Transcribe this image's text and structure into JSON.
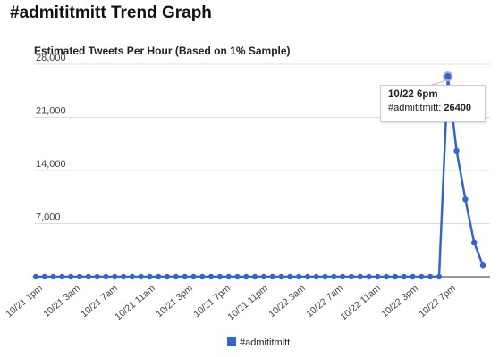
{
  "page": {
    "title": "#admititmitt Trend Graph"
  },
  "tooltip": {
    "title": "10/22 6pm",
    "series_label": "#admititmitt:",
    "value": "26400"
  },
  "chart_data": {
    "type": "line",
    "title": "Estimated Tweets Per Hour (Based on 1% Sample)",
    "xlabel": "",
    "ylabel": "",
    "ylim": [
      0,
      28000
    ],
    "yticks": [
      7000,
      14000,
      21000,
      28000
    ],
    "ytick_labels": [
      "7,000",
      "14,000",
      "21,000",
      "28,000"
    ],
    "xtick_labels": [
      "10/21 1pm",
      "10/21 3am",
      "10/21 7am",
      "10/21 11am",
      "10/21 3pm",
      "10/21 7pm",
      "10/21 11pm",
      "10/22 3am",
      "10/22 7am",
      "10/22 11am",
      "10/22 3pm",
      "10/22 7pm"
    ],
    "grid": true,
    "legend_position": "bottom",
    "colors": {
      "series": "#3366cc",
      "grid": "#dddddd",
      "axis": "#333333"
    },
    "series": [
      {
        "name": "#admititmitt",
        "values": [
          0,
          0,
          0,
          0,
          0,
          0,
          0,
          0,
          0,
          0,
          0,
          0,
          0,
          0,
          0,
          0,
          0,
          0,
          0,
          0,
          0,
          0,
          0,
          0,
          0,
          0,
          0,
          0,
          0,
          0,
          0,
          0,
          0,
          0,
          0,
          0,
          0,
          0,
          0,
          0,
          0,
          0,
          0,
          0,
          0,
          0,
          0,
          26400,
          16600,
          10200,
          4500,
          1500
        ]
      }
    ]
  }
}
